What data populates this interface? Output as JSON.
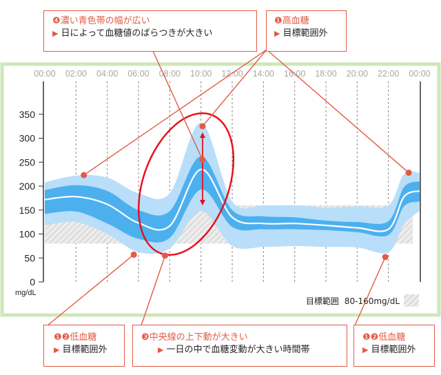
{
  "chart_data": {
    "type": "area",
    "x_ticks": [
      "00:00",
      "02:00",
      "04:00",
      "06:00",
      "08:00",
      "10:00",
      "12:00",
      "14:00",
      "16:00",
      "18:00",
      "20:00",
      "22:00",
      "00:00"
    ],
    "y_ticks": [
      0,
      50,
      100,
      150,
      200,
      250,
      300,
      350
    ],
    "ylabel": "mg/dL",
    "xlim": [
      0,
      24
    ],
    "ylim": [
      0,
      380
    ],
    "grid": "vertical dashed",
    "target_range": [
      80,
      160
    ],
    "hours": [
      0,
      2,
      4,
      6,
      8,
      10,
      12,
      14,
      16,
      18,
      20,
      22,
      23,
      24
    ],
    "median": [
      172,
      178,
      162,
      123,
      117,
      235,
      135,
      122,
      122,
      118,
      113,
      110,
      178,
      190
    ],
    "p25_p75": {
      "lower": [
        142,
        147,
        122,
        90,
        92,
        193,
        115,
        110,
        110,
        108,
        104,
        98,
        158,
        168
      ],
      "upper": [
        192,
        202,
        190,
        150,
        148,
        262,
        150,
        137,
        135,
        128,
        125,
        127,
        198,
        210
      ]
    },
    "p10_p90": {
      "lower": [
        118,
        125,
        100,
        62,
        70,
        148,
        75,
        73,
        75,
        73,
        72,
        62,
        120,
        148
      ],
      "upper": [
        208,
        222,
        218,
        185,
        185,
        332,
        168,
        160,
        160,
        155,
        158,
        160,
        225,
        228
      ]
    },
    "colors": {
      "outer": "#b9def9",
      "inner": "#4cb0ef",
      "median": "#ffffff",
      "hatch": "#c0c0c0",
      "accent": "#e25b45",
      "frame": "#cde8b9",
      "grid": "#888888"
    },
    "legend": {
      "label": "目標範囲",
      "range": "80-160mg/dL",
      "placement": "bottom-right"
    },
    "annotations": [
      {
        "id": "dot-left-high",
        "x": 2.5,
        "y": 223
      },
      {
        "id": "dot-peak",
        "x": 10.1,
        "y": 325
      },
      {
        "id": "dot-center",
        "x": 10.1,
        "y": 255
      },
      {
        "id": "dot-right-high",
        "x": 23.3,
        "y": 228
      },
      {
        "id": "dot-low-6",
        "x": 5.7,
        "y": 57
      },
      {
        "id": "dot-low-8",
        "x": 7.7,
        "y": 55
      },
      {
        "id": "dot-low-22",
        "x": 21.8,
        "y": 52
      }
    ]
  },
  "callouts": {
    "c4": {
      "title": "❹濃い青色帯の幅が広い",
      "sub": "日によって血糖値のばらつきが大きい"
    },
    "c1": {
      "title": "❶高血糖",
      "sub": "目標範囲外"
    },
    "c12a": {
      "title": "❶❷低血糖",
      "sub": "目標範囲外"
    },
    "c3": {
      "title": "❸中央線の上下動が大きい",
      "sub": "一日の中で血糖変動が大きい時間帯"
    },
    "c12b": {
      "title": "❶❷低血糖",
      "sub": "目標範囲外"
    }
  }
}
